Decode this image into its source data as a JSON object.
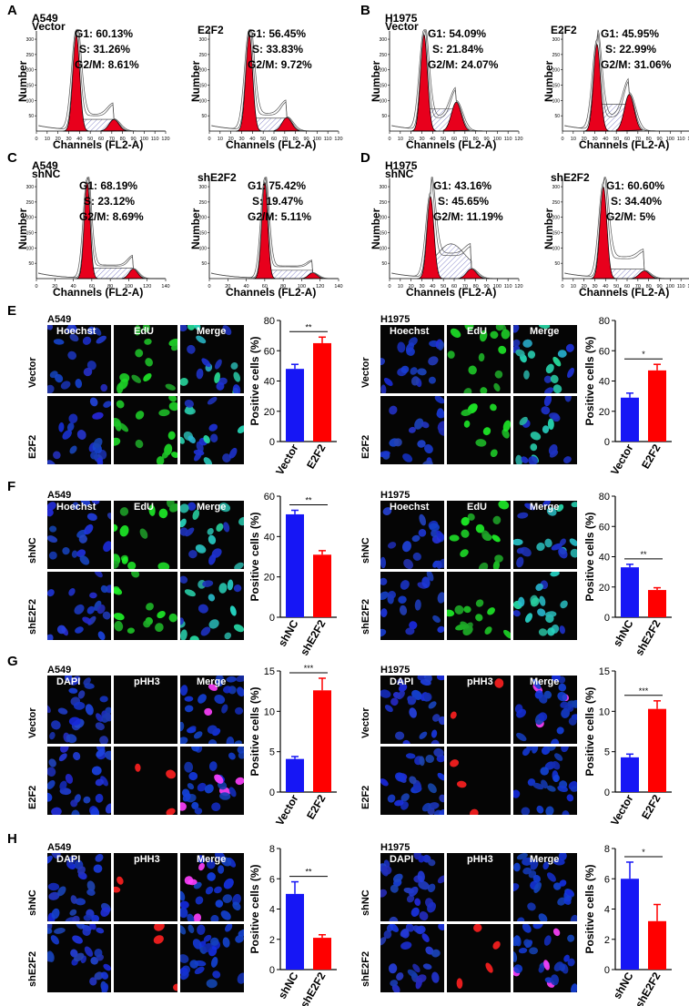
{
  "colors": {
    "blue": "#1616f5",
    "red": "#ff0000",
    "fill_red": "#e8001c",
    "hatch": "#8a8acc"
  },
  "flow": {
    "A": {
      "label": "A",
      "cell": "A549",
      "xlabel": "Channels (FL2-A)",
      "ylabel": "Number",
      "xmax": 120,
      "plots": [
        {
          "title": "Vector",
          "g1": "G1:  60.13%",
          "s": "S:  31.26%",
          "g2": "G2/M:  8.61%",
          "peak": 37,
          "g2peak": 72,
          "h1": 1.0,
          "h2": 0.12,
          "sd": 0.18
        },
        {
          "title": "E2F2",
          "g1": "G1:  56.45%",
          "s": "S:  33.83%",
          "g2": "G2/M:  9.72%",
          "peak": 37,
          "g2peak": 72,
          "h1": 1.0,
          "h2": 0.14,
          "sd": 0.2
        }
      ]
    },
    "B": {
      "label": "B",
      "cell": "H1975",
      "xlabel": "",
      "ylabel": "",
      "xmax": 120,
      "plots": [
        {
          "title": "Vector",
          "g1": "G1:  54.09%",
          "s": "S:  21.84%",
          "g2": "G2/M:  24.07%",
          "peak": 32,
          "g2peak": 62,
          "h1": 1.0,
          "h2": 0.3,
          "sd": 0.12
        },
        {
          "title": "E2F2",
          "g1": "G1:  45.95%",
          "s": "S:  22.99%",
          "g2": "G2/M:  31.06%",
          "peak": 32,
          "g2peak": 62,
          "h1": 0.9,
          "h2": 0.38,
          "sd": 0.14
        }
      ]
    },
    "C": {
      "label": "C",
      "cell": "A549",
      "xlabel": "Channels (FL2-A)",
      "ylabel": "Number",
      "xmax": 140,
      "plots": [
        {
          "title": "shNC",
          "g1": "G1:  68.19%",
          "s": "S:  23.12%",
          "g2": "G2/M:  8.69%",
          "peak": 55,
          "g2peak": 105,
          "h1": 1.0,
          "h2": 0.1,
          "sd": 0.12
        },
        {
          "title": "shE2F2",
          "g1": "G1:  75.42%",
          "s": "S:  19.47%",
          "g2": "G2/M:  5.11%",
          "peak": 60,
          "g2peak": 112,
          "h1": 1.0,
          "h2": 0.06,
          "sd": 0.1
        }
      ]
    },
    "D": {
      "label": "D",
      "cell": "H1975",
      "xlabel": "Channels (FL2-A)",
      "ylabel": "Number",
      "xmax": 120,
      "plots": [
        {
          "title": "shNC",
          "g1": "G1:  43.16%",
          "s": "S:  45.65%",
          "g2": "G2/M:  11.19%",
          "peak": 38,
          "g2peak": 76,
          "h1": 0.85,
          "h2": 0.1,
          "sd": 0.38
        },
        {
          "title": "shE2F2",
          "g1": "G1:  60.60%",
          "s": "S:  34.40%",
          "g2": "G2/M:  5%",
          "peak": 38,
          "g2peak": 76,
          "h1": 0.95,
          "h2": 0.08,
          "sd": 0.3
        }
      ]
    }
  },
  "axis_ticks": {
    "x120": [
      "0",
      "10",
      "20",
      "30",
      "40",
      "50",
      "60",
      "70",
      "80",
      "90",
      "100",
      "110",
      "120"
    ],
    "x140": [
      "0",
      "20",
      "40",
      "60",
      "80",
      "100",
      "120",
      "140"
    ],
    "y": [
      "50",
      "100",
      "150",
      "200",
      "250",
      "300"
    ]
  },
  "micro": {
    "E": {
      "label": "E",
      "left_cell": "A549",
      "right_cell": "H1975",
      "cols": [
        "Hoechst",
        "EdU",
        "Merge"
      ],
      "rows": [
        "Vector",
        "E2F2"
      ],
      "stain": "edu"
    },
    "F": {
      "label": "F",
      "left_cell": "A549",
      "right_cell": "H1975",
      "cols": [
        "Hoechst",
        "EdU",
        "Merge"
      ],
      "rows": [
        "shNC",
        "shE2F2"
      ],
      "stain": "edu"
    },
    "G": {
      "label": "G",
      "left_cell": "A549",
      "right_cell": "H1975",
      "cols": [
        "DAPI",
        "pHH3",
        "Merge"
      ],
      "rows": [
        "Vector",
        "E2F2"
      ],
      "stain": "phh3"
    },
    "H": {
      "label": "H",
      "left_cell": "A549",
      "right_cell": "H1975",
      "cols": [
        "DAPI",
        "pHH3",
        "Merge"
      ],
      "rows": [
        "shNC",
        "shE2F2"
      ],
      "stain": "phh3"
    }
  },
  "chart_data": [
    {
      "panel": "E-A549",
      "type": "bar",
      "categories": [
        "Vector",
        "E2F2"
      ],
      "values": [
        48,
        65
      ],
      "errors": [
        3,
        4
      ],
      "ylabel": "Positive cells (%)",
      "ylim": [
        0,
        80
      ],
      "yticks": [
        "0",
        "20",
        "40",
        "60",
        "80"
      ],
      "sig": "**"
    },
    {
      "panel": "E-H1975",
      "type": "bar",
      "categories": [
        "Vector",
        "E2F2"
      ],
      "values": [
        29,
        47
      ],
      "errors": [
        3,
        4
      ],
      "ylabel": "Positive cells (%)",
      "ylim": [
        0,
        80
      ],
      "yticks": [
        "0",
        "20",
        "40",
        "60",
        "80"
      ],
      "sig": "*"
    },
    {
      "panel": "F-A549",
      "type": "bar",
      "categories": [
        "shNC",
        "shE2F2"
      ],
      "values": [
        51,
        31
      ],
      "errors": [
        2,
        2
      ],
      "ylabel": "Positive cells (%)",
      "ylim": [
        0,
        60
      ],
      "yticks": [
        "0",
        "20",
        "40",
        "60"
      ],
      "sig": "**"
    },
    {
      "panel": "F-H1975",
      "type": "bar",
      "categories": [
        "shNC",
        "shE2F2"
      ],
      "values": [
        33,
        18
      ],
      "errors": [
        2,
        1.5
      ],
      "ylabel": "Positive cells (%)",
      "ylim": [
        0,
        80
      ],
      "yticks": [
        "0",
        "20",
        "40",
        "60",
        "80"
      ],
      "sig": "**"
    },
    {
      "panel": "G-A549",
      "type": "bar",
      "categories": [
        "Vector",
        "E2F2"
      ],
      "values": [
        4.1,
        12.6
      ],
      "errors": [
        0.3,
        1.5
      ],
      "ylabel": "Positive cells (%)",
      "ylim": [
        0,
        15
      ],
      "yticks": [
        "0",
        "5",
        "10",
        "15"
      ],
      "sig": "***"
    },
    {
      "panel": "G-H1975",
      "type": "bar",
      "categories": [
        "Vector",
        "E2F2"
      ],
      "values": [
        4.3,
        10.3
      ],
      "errors": [
        0.4,
        1.0
      ],
      "ylabel": "Positive cells (%)",
      "ylim": [
        0,
        15
      ],
      "yticks": [
        "0",
        "5",
        "10",
        "15"
      ],
      "sig": "***"
    },
    {
      "panel": "H-A549",
      "type": "bar",
      "categories": [
        "shNC",
        "shE2F2"
      ],
      "values": [
        5.0,
        2.1
      ],
      "errors": [
        0.8,
        0.2
      ],
      "ylabel": "Positive cells (%)",
      "ylim": [
        0,
        8
      ],
      "yticks": [
        "0",
        "2",
        "4",
        "6",
        "8"
      ],
      "sig": "**"
    },
    {
      "panel": "H-H1975",
      "type": "bar",
      "categories": [
        "shNC",
        "shE2F2"
      ],
      "values": [
        6.0,
        3.2
      ],
      "errors": [
        1.1,
        1.1
      ],
      "ylabel": "Positive cells (%)",
      "ylim": [
        0,
        8
      ],
      "yticks": [
        "0",
        "2",
        "4",
        "6",
        "8"
      ],
      "sig": "*"
    }
  ]
}
